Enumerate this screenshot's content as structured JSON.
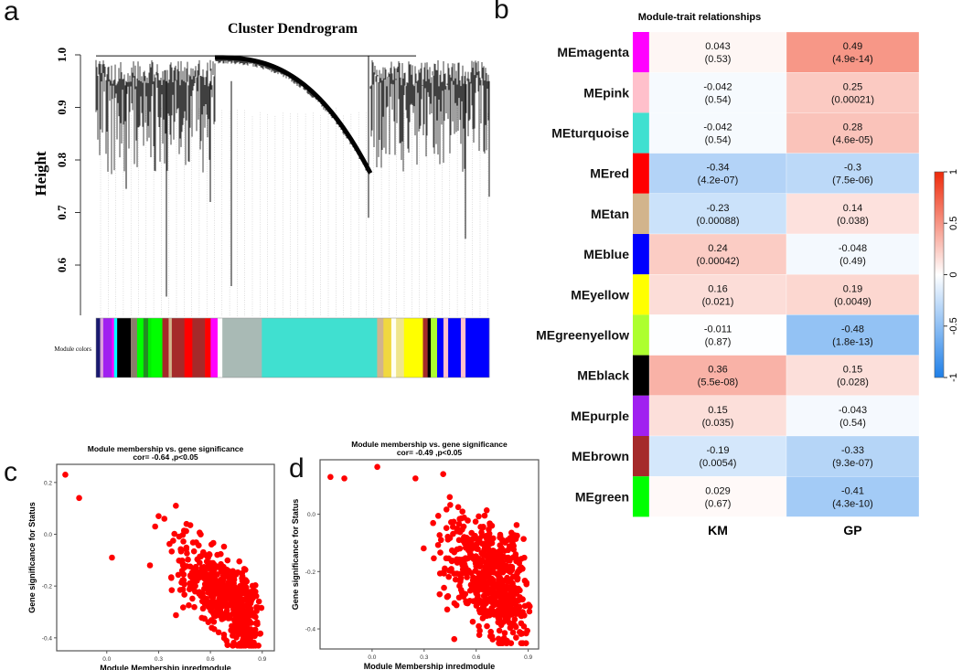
{
  "panels": {
    "a": "a",
    "b": "b",
    "c": "c",
    "d": "d"
  },
  "chart_data": [
    {
      "type": "dendrogram",
      "title": "Cluster Dendrogram",
      "ylabel": "Height",
      "ylim": [
        0.5,
        1.0
      ],
      "yticks": [
        "0.6",
        "0.7",
        "0.8",
        "0.9",
        "1.0"
      ],
      "yticks_values": [
        0.6,
        0.7,
        0.8,
        0.9,
        1.0
      ],
      "color_row_label": "Module colors",
      "module_color_segments": [
        {
          "color": "#191970",
          "w": 13
        },
        {
          "color": "#dda0dd",
          "w": 10
        },
        {
          "color": "#a020f0",
          "w": 27
        },
        {
          "color": "#ff00ff",
          "w": 7
        },
        {
          "color": "#00ffff",
          "w": 10
        },
        {
          "color": "#000000",
          "w": 43
        },
        {
          "color": "#8b7d6b",
          "w": 20
        },
        {
          "color": "#00ff00",
          "w": 20
        },
        {
          "color": "#228b22",
          "w": 15
        },
        {
          "color": "#00ee00",
          "w": 10
        },
        {
          "color": "#00ff00",
          "w": 35
        },
        {
          "color": "#a52a2a",
          "w": 20
        },
        {
          "color": "#d2b48c",
          "w": 10
        },
        {
          "color": "#a52a2a",
          "w": 40
        },
        {
          "color": "#ff0000",
          "w": 25
        },
        {
          "color": "#a52a2a",
          "w": 40
        },
        {
          "color": "#ff0000",
          "w": 18
        },
        {
          "color": "#ff00ff",
          "w": 22
        },
        {
          "color": "#ffffff",
          "w": 15
        },
        {
          "color": "#a9bab5",
          "w": 125
        },
        {
          "color": "#40e0d0",
          "w": 365
        },
        {
          "color": "#d2b48c",
          "w": 20
        },
        {
          "color": "#f0d840",
          "w": 25
        },
        {
          "color": "#fffff0",
          "w": 15
        },
        {
          "color": "#f0e68c",
          "w": 25
        },
        {
          "color": "#ffff00",
          "w": 60
        },
        {
          "color": "#a52a2a",
          "w": 15
        },
        {
          "color": "#000000",
          "w": 10
        },
        {
          "color": "#adff2f",
          "w": 20
        },
        {
          "color": "#0000ff",
          "w": 20
        },
        {
          "color": "#ffc0cb",
          "w": 15
        },
        {
          "color": "#0000ff",
          "w": 40
        },
        {
          "color": "#ffc0cb",
          "w": 15
        },
        {
          "color": "#0000ff",
          "w": 75
        }
      ]
    },
    {
      "type": "heatmap",
      "title": "Module-trait relationships",
      "columns": [
        "KM",
        "GP"
      ],
      "colorbar": {
        "range": [
          -1,
          1
        ],
        "ticks": [
          "1",
          "0.5",
          "0",
          "-0.5",
          "-1"
        ],
        "ticks_values": [
          1,
          0.5,
          0,
          -0.5,
          -1
        ],
        "low": "#1e7fe8",
        "mid": "#ffffff",
        "high": "#ee2a0a"
      },
      "rows": [
        {
          "name": "MEmagenta",
          "color": "#ff00ff",
          "cells": [
            {
              "r": 0.043,
              "r_text": "0.043",
              "p": "(0.53)"
            },
            {
              "r": 0.49,
              "r_text": "0.49",
              "p": "(4.9e-14)"
            }
          ]
        },
        {
          "name": "MEpink",
          "color": "#ffc0cb",
          "cells": [
            {
              "r": -0.042,
              "r_text": "-0.042",
              "p": "(0.54)"
            },
            {
              "r": 0.25,
              "r_text": "0.25",
              "p": "(0.00021)"
            }
          ]
        },
        {
          "name": "MEturquoise",
          "color": "#40e0d0",
          "cells": [
            {
              "r": -0.042,
              "r_text": "-0.042",
              "p": "(0.54)"
            },
            {
              "r": 0.28,
              "r_text": "0.28",
              "p": "(4.6e-05)"
            }
          ]
        },
        {
          "name": "MEred",
          "color": "#ff0000",
          "cells": [
            {
              "r": -0.34,
              "r_text": "-0.34",
              "p": "(4.2e-07)"
            },
            {
              "r": -0.3,
              "r_text": "-0.3",
              "p": "(7.5e-06)"
            }
          ]
        },
        {
          "name": "MEtan",
          "color": "#d2b48c",
          "cells": [
            {
              "r": -0.23,
              "r_text": "-0.23",
              "p": "(0.00088)"
            },
            {
              "r": 0.14,
              "r_text": "0.14",
              "p": "(0.038)"
            }
          ]
        },
        {
          "name": "MEblue",
          "color": "#0000ff",
          "cells": [
            {
              "r": 0.24,
              "r_text": "0.24",
              "p": "(0.00042)"
            },
            {
              "r": -0.048,
              "r_text": "-0.048",
              "p": "(0.49)"
            }
          ]
        },
        {
          "name": "MEyellow",
          "color": "#ffff00",
          "cells": [
            {
              "r": 0.16,
              "r_text": "0.16",
              "p": "(0.021)"
            },
            {
              "r": 0.19,
              "r_text": "0.19",
              "p": "(0.0049)"
            }
          ]
        },
        {
          "name": "MEgreenyellow",
          "color": "#adff2f",
          "cells": [
            {
              "r": -0.011,
              "r_text": "-0.011",
              "p": "(0.87)"
            },
            {
              "r": -0.48,
              "r_text": "-0.48",
              "p": "(1.8e-13)"
            }
          ]
        },
        {
          "name": "MEblack",
          "color": "#000000",
          "cells": [
            {
              "r": 0.36,
              "r_text": "0.36",
              "p": "(5.5e-08)"
            },
            {
              "r": 0.15,
              "r_text": "0.15",
              "p": "(0.028)"
            }
          ]
        },
        {
          "name": "MEpurple",
          "color": "#a020f0",
          "cells": [
            {
              "r": 0.15,
              "r_text": "0.15",
              "p": "(0.035)"
            },
            {
              "r": -0.043,
              "r_text": "-0.043",
              "p": "(0.54)"
            }
          ]
        },
        {
          "name": "MEbrown",
          "color": "#a52a2a",
          "cells": [
            {
              "r": -0.19,
              "r_text": "-0.19",
              "p": "(0.0054)"
            },
            {
              "r": -0.33,
              "r_text": "-0.33",
              "p": "(9.3e-07)"
            }
          ]
        },
        {
          "name": "MEgreen",
          "color": "#00ff00",
          "cells": [
            {
              "r": 0.029,
              "r_text": "0.029",
              "p": "(0.67)"
            },
            {
              "r": -0.41,
              "r_text": "-0.41",
              "p": "(4.3e-10)"
            }
          ]
        }
      ]
    },
    {
      "type": "scatter",
      "title": "Module membership vs. gene significance",
      "subtitle": "cor= -0.64 ,p<0.05",
      "xlabel": "Module Membership inredmodule",
      "ylabel": "Gene significance for Status",
      "xlim": [
        -0.29,
        0.97
      ],
      "ylim": [
        -0.45,
        0.27
      ],
      "xticks": [
        "0.0",
        "0.3",
        "0.6",
        "0.9"
      ],
      "xticks_values": [
        0,
        0.3,
        0.6,
        0.9
      ],
      "yticks": [
        "0.2",
        "0.0",
        "-0.2",
        "-0.4"
      ],
      "yticks_values": [
        0.2,
        0,
        -0.2,
        -0.4
      ],
      "point_color": "#ff0000",
      "outliers": [
        [
          -0.24,
          0.23
        ],
        [
          -0.16,
          0.14
        ],
        [
          0.03,
          -0.09
        ],
        [
          0.25,
          -0.12
        ],
        [
          0.4,
          0.11
        ],
        [
          0.3,
          0.07
        ],
        [
          0.28,
          0.03
        ]
      ],
      "cluster": {
        "n": 560,
        "x_range": [
          0.29,
          0.91
        ],
        "slope": -0.55,
        "intercept": 0.13,
        "spread": 0.075,
        "seed": 7
      }
    },
    {
      "type": "scatter",
      "title": "Module membership vs. gene significance",
      "subtitle": "cor= -0.49 ,p<0.05",
      "xlabel": "Module Membership inredmodule",
      "ylabel": "Gene significance for Status",
      "xlim": [
        -0.3,
        0.96
      ],
      "ylim": [
        -0.47,
        0.19
      ],
      "xticks": [
        "0.0",
        "0.3",
        "0.6",
        "0.9"
      ],
      "xticks_values": [
        0,
        0.3,
        0.6,
        0.9
      ],
      "yticks": [
        "0.0",
        "-0.2",
        "-0.4"
      ],
      "yticks_values": [
        0,
        -0.2,
        -0.4
      ],
      "point_color": "#ff0000",
      "outliers": [
        [
          -0.24,
          0.13
        ],
        [
          -0.16,
          0.125
        ],
        [
          0.03,
          0.165
        ],
        [
          0.25,
          0.125
        ],
        [
          0.41,
          0.14
        ]
      ],
      "cluster": {
        "n": 620,
        "x_range": [
          0.28,
          0.92
        ],
        "slope": -0.4,
        "intercept": 0.05,
        "spread": 0.095,
        "seed": 11
      }
    }
  ]
}
